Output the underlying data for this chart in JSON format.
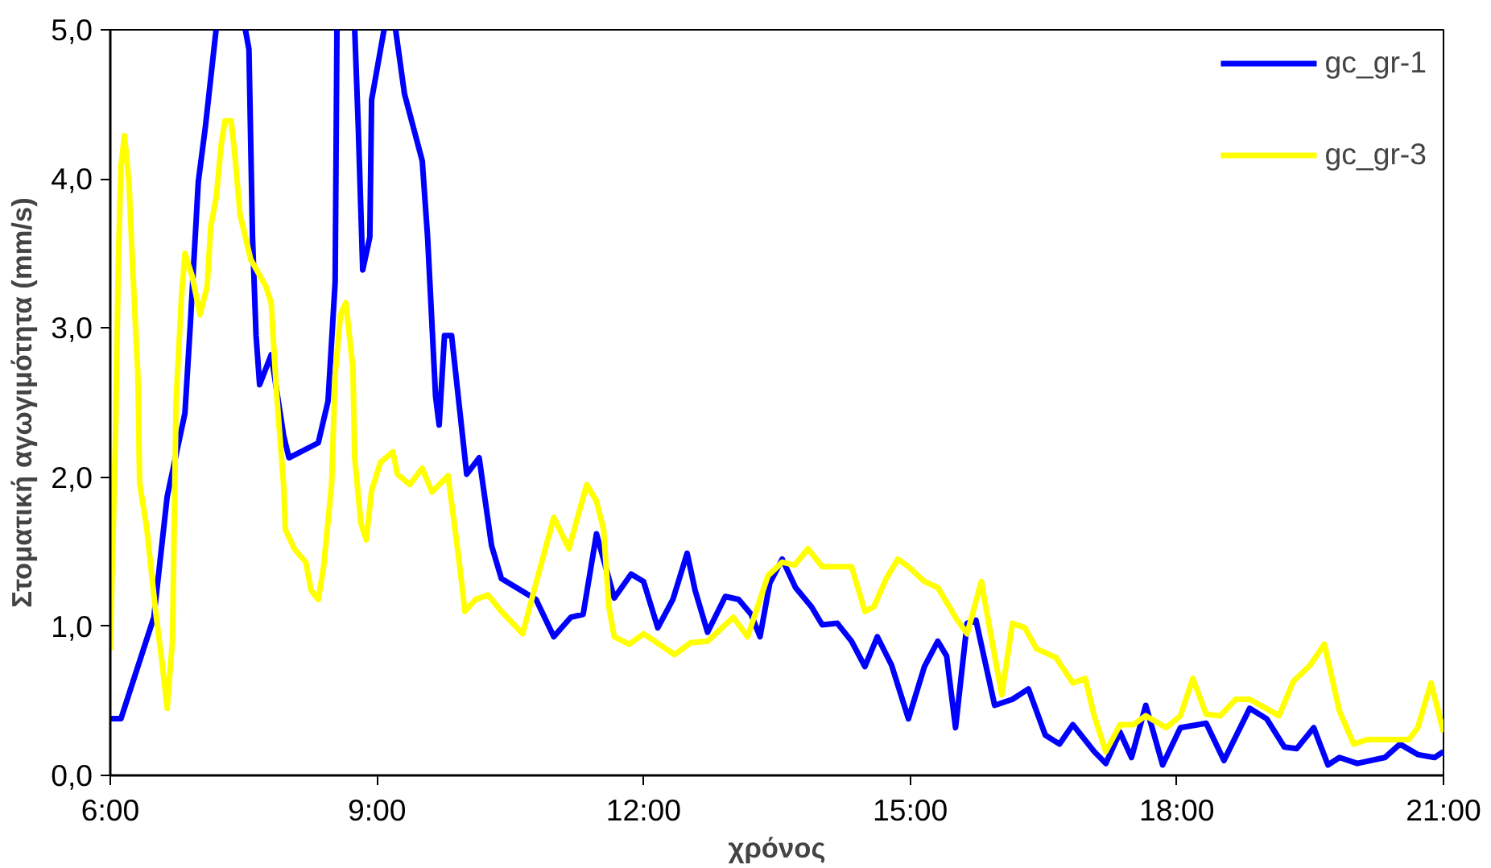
{
  "chart_data": {
    "type": "line",
    "xlabel": "χρόνος",
    "ylabel": "Στοματική αγωγιμότητα (mm/s)",
    "xlim": [
      6,
      21
    ],
    "xticks": [
      {
        "value": 6,
        "label": "6:00"
      },
      {
        "value": 9,
        "label": "9:00"
      },
      {
        "value": 12,
        "label": "12:00"
      },
      {
        "value": 15,
        "label": "15:00"
      },
      {
        "value": 18,
        "label": "18:00"
      },
      {
        "value": 21,
        "label": "21:00"
      }
    ],
    "ylim": [
      0,
      5
    ],
    "yticks": [
      {
        "value": 0,
        "label": "0,0"
      },
      {
        "value": 1,
        "label": "1,0"
      },
      {
        "value": 2,
        "label": "2,0"
      },
      {
        "value": 3,
        "label": "3,0"
      },
      {
        "value": 4,
        "label": "4,0"
      },
      {
        "value": 5,
        "label": "5,0"
      }
    ],
    "grid": false,
    "legend": "top right",
    "marker": "none",
    "line_style": "solid",
    "series": [
      {
        "name": "gc_gr-1",
        "color": "#0000ff",
        "x": [
          6.0,
          6.12,
          6.31,
          6.49,
          6.64,
          6.84,
          6.9,
          6.99,
          7.07,
          7.19,
          7.35,
          7.52,
          7.56,
          7.6,
          7.64,
          7.68,
          7.81,
          7.95,
          8.01,
          8.34,
          8.45,
          8.53,
          8.55,
          8.65,
          8.75,
          8.79,
          8.84,
          8.92,
          8.94,
          9.08,
          9.15,
          9.21,
          9.31,
          9.51,
          9.57,
          9.66,
          9.7,
          9.76,
          9.84,
          10.01,
          10.15,
          10.29,
          10.4,
          10.79,
          10.99,
          11.18,
          11.32,
          11.47,
          11.67,
          11.86,
          12.0,
          12.16,
          12.33,
          12.49,
          12.58,
          12.72,
          12.92,
          13.07,
          13.21,
          13.31,
          13.42,
          13.56,
          13.71,
          13.89,
          14.01,
          14.18,
          14.34,
          14.49,
          14.63,
          14.79,
          14.98,
          15.16,
          15.31,
          15.41,
          15.51,
          15.64,
          15.74,
          15.95,
          16.15,
          16.33,
          16.52,
          16.68,
          16.83,
          17.07,
          17.2,
          17.36,
          17.49,
          17.65,
          17.84,
          18.04,
          18.33,
          18.53,
          18.82,
          19.01,
          19.21,
          19.35,
          19.54,
          19.7,
          19.83,
          20.03,
          20.34,
          20.51,
          20.71,
          20.9,
          21.0
        ],
        "values": [
          0.38,
          0.38,
          0.73,
          1.06,
          1.87,
          2.43,
          3.02,
          3.98,
          4.35,
          5.0,
          null,
          5.0,
          4.87,
          3.61,
          2.95,
          2.62,
          2.82,
          2.28,
          2.13,
          2.23,
          2.51,
          3.31,
          5.0,
          null,
          5.0,
          4.35,
          3.39,
          3.61,
          4.53,
          5.0,
          null,
          5.0,
          4.57,
          4.12,
          3.61,
          2.54,
          2.35,
          2.95,
          2.95,
          2.02,
          2.13,
          1.54,
          1.32,
          1.18,
          0.93,
          1.06,
          1.08,
          1.62,
          1.19,
          1.35,
          1.3,
          0.99,
          1.18,
          1.49,
          1.24,
          0.96,
          1.2,
          1.18,
          1.08,
          0.93,
          1.29,
          1.45,
          1.26,
          1.13,
          1.01,
          1.02,
          0.9,
          0.73,
          0.93,
          0.74,
          0.38,
          0.73,
          0.9,
          0.8,
          0.32,
          1.02,
          1.04,
          0.47,
          0.51,
          0.58,
          0.27,
          0.21,
          0.34,
          0.16,
          0.08,
          0.29,
          0.12,
          0.47,
          0.07,
          0.32,
          0.35,
          0.1,
          0.45,
          0.38,
          0.19,
          0.18,
          0.32,
          0.07,
          0.12,
          0.08,
          0.12,
          0.21,
          0.14,
          0.12,
          0.16
        ]
      },
      {
        "name": "gc_gr-3",
        "color": "#ffff00",
        "x": [
          6.0,
          6.06,
          6.09,
          6.12,
          6.16,
          6.21,
          6.25,
          6.31,
          6.33,
          6.41,
          6.51,
          6.58,
          6.64,
          6.7,
          6.74,
          6.8,
          6.84,
          6.92,
          7.01,
          7.09,
          7.13,
          7.19,
          7.25,
          7.29,
          7.36,
          7.4,
          7.46,
          7.58,
          7.75,
          7.81,
          7.87,
          7.95,
          7.97,
          8.07,
          8.2,
          8.26,
          8.34,
          8.4,
          8.49,
          8.53,
          8.59,
          8.65,
          8.73,
          8.75,
          8.82,
          8.88,
          8.94,
          9.04,
          9.18,
          9.23,
          9.37,
          9.51,
          9.62,
          9.8,
          9.92,
          9.99,
          10.11,
          10.25,
          10.4,
          10.64,
          10.79,
          10.99,
          11.16,
          11.36,
          11.47,
          11.55,
          11.61,
          11.67,
          11.84,
          12.0,
          12.35,
          12.53,
          12.72,
          13.01,
          13.17,
          13.4,
          13.56,
          13.7,
          13.85,
          14.01,
          14.34,
          14.49,
          14.59,
          14.73,
          14.86,
          14.98,
          15.16,
          15.31,
          15.51,
          15.64,
          15.8,
          15.86,
          16.03,
          16.15,
          16.29,
          16.42,
          16.64,
          16.83,
          16.97,
          17.07,
          17.2,
          17.36,
          17.51,
          17.65,
          17.88,
          18.04,
          18.18,
          18.33,
          18.49,
          18.66,
          18.82,
          19.15,
          19.31,
          19.5,
          19.66,
          19.83,
          19.99,
          20.14,
          20.61,
          20.71,
          20.86,
          21.0
        ],
        "values": [
          0.84,
          2.32,
          3.43,
          4.09,
          4.29,
          3.98,
          3.43,
          2.69,
          1.96,
          1.66,
          1.1,
          0.77,
          0.45,
          0.91,
          2.51,
          3.2,
          3.5,
          3.35,
          3.09,
          3.28,
          3.68,
          3.87,
          4.24,
          4.39,
          4.39,
          4.17,
          3.76,
          3.46,
          3.28,
          3.17,
          2.57,
          1.95,
          1.65,
          1.52,
          1.43,
          1.24,
          1.18,
          1.4,
          1.95,
          2.69,
          3.09,
          3.17,
          2.73,
          2.13,
          1.69,
          1.58,
          1.91,
          2.1,
          2.17,
          2.02,
          1.95,
          2.06,
          1.9,
          2.01,
          1.46,
          1.1,
          1.18,
          1.21,
          1.1,
          0.95,
          1.29,
          1.73,
          1.52,
          1.95,
          1.84,
          1.65,
          1.13,
          0.93,
          0.88,
          0.95,
          0.81,
          0.89,
          0.9,
          1.06,
          0.93,
          1.34,
          1.43,
          1.41,
          1.52,
          1.4,
          1.4,
          1.1,
          1.13,
          1.32,
          1.45,
          1.4,
          1.3,
          1.26,
          1.06,
          0.95,
          1.3,
          1.1,
          0.54,
          1.02,
          0.99,
          0.85,
          0.79,
          0.62,
          0.65,
          0.4,
          0.16,
          0.34,
          0.34,
          0.4,
          0.32,
          0.4,
          0.65,
          0.41,
          0.4,
          0.51,
          0.51,
          0.4,
          0.63,
          0.74,
          0.88,
          0.43,
          0.21,
          0.24,
          0.24,
          0.32,
          0.62,
          0.29
        ]
      }
    ]
  }
}
